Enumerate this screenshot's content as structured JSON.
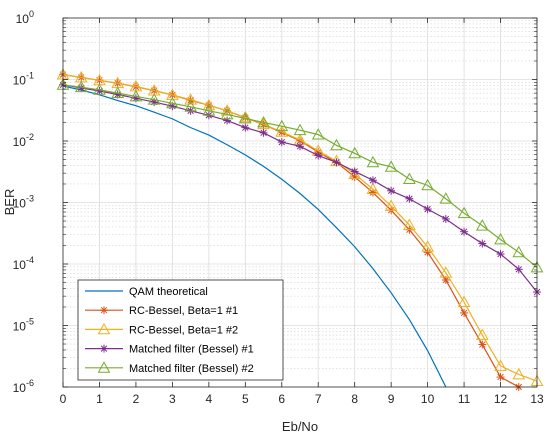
{
  "chart_data": {
    "type": "line",
    "title": "",
    "xlabel": "Eb/No",
    "ylabel": "BER",
    "xlim": [
      0,
      13
    ],
    "ylim": [
      1e-06,
      1
    ],
    "yscale": "log",
    "grid": true,
    "minor_grid": true,
    "legend_position": "bottom-left",
    "xticks": [
      "0",
      "1",
      "2",
      "3",
      "4",
      "5",
      "6",
      "7",
      "8",
      "9",
      "10",
      "11",
      "12",
      "13"
    ],
    "yticks": [
      {
        "base": "10",
        "exp": "0",
        "value": 1
      },
      {
        "base": "10",
        "exp": "-1",
        "value": 0.1
      },
      {
        "base": "10",
        "exp": "-2",
        "value": 0.01
      },
      {
        "base": "10",
        "exp": "-3",
        "value": 0.001
      },
      {
        "base": "10",
        "exp": "-4",
        "value": 0.0001
      },
      {
        "base": "10",
        "exp": "-5",
        "value": 1e-05
      },
      {
        "base": "10",
        "exp": "-6",
        "value": 1e-06
      }
    ],
    "series": [
      {
        "name": "QAM theoretical",
        "color": "#0072BD",
        "marker": "none",
        "x": [
          0,
          0.5,
          1,
          1.5,
          2,
          2.5,
          3,
          3.5,
          4,
          4.5,
          5,
          5.5,
          6,
          6.5,
          7,
          7.5,
          8,
          8.5,
          9,
          9.5,
          10,
          10.5
        ],
        "y": [
          0.0786,
          0.0675,
          0.0563,
          0.0454,
          0.0375,
          0.0294,
          0.0229,
          0.0165,
          0.0125,
          0.00868,
          0.00595,
          0.00386,
          0.00239,
          0.0014,
          0.00077,
          0.00039,
          0.000191,
          8.4e-05,
          3.4e-05,
          1.25e-05,
          3.9e-06,
          1e-06
        ]
      },
      {
        "name": "RC-Bessel, Beta=1 #1",
        "color": "#D95319",
        "marker": "star",
        "x": [
          0,
          0.5,
          1,
          1.5,
          2,
          2.5,
          3,
          3.5,
          4,
          4.5,
          5,
          5.5,
          6,
          6.5,
          7,
          7.5,
          8,
          8.5,
          9,
          9.5,
          10,
          10.5,
          11,
          11.5,
          12,
          12.5
        ],
        "y": [
          0.12,
          0.108,
          0.097,
          0.087,
          0.076,
          0.066,
          0.056,
          0.046,
          0.038,
          0.031,
          0.0239,
          0.0185,
          0.0138,
          0.0101,
          0.0066,
          0.0045,
          0.0026,
          0.00145,
          0.00075,
          0.00036,
          0.000155,
          5.5e-05,
          1.6e-05,
          4.9e-06,
          1.45e-06,
          1e-06
        ]
      },
      {
        "name": "RC-Bessel, Beta=1 #2",
        "color": "#EDB120",
        "marker": "triangle",
        "x": [
          0,
          0.5,
          1,
          1.5,
          2,
          2.5,
          3,
          3.5,
          4,
          4.5,
          5,
          5.5,
          6,
          6.5,
          7,
          7.5,
          8,
          8.5,
          9,
          9.5,
          10,
          10.5,
          11,
          11.5,
          12,
          12.5,
          13
        ],
        "y": [
          0.12,
          0.108,
          0.097,
          0.087,
          0.077,
          0.066,
          0.056,
          0.047,
          0.038,
          0.031,
          0.0242,
          0.0187,
          0.0141,
          0.0104,
          0.0069,
          0.0047,
          0.0029,
          0.00165,
          0.00088,
          0.00043,
          0.00019,
          7.2e-05,
          2.4e-05,
          7e-06,
          2.2e-06,
          1.6e-06,
          1.25e-06
        ]
      },
      {
        "name": "Matched filter (Bessel) #1",
        "color": "#7E2F8E",
        "marker": "star",
        "x": [
          0,
          0.5,
          1,
          1.5,
          2,
          2.5,
          3,
          3.5,
          4,
          4.5,
          5,
          5.5,
          6,
          6.5,
          7,
          7.5,
          8,
          8.5,
          9,
          9.5,
          10,
          10.5,
          11,
          11.5,
          12,
          12.5,
          13
        ],
        "y": [
          0.082,
          0.073,
          0.065,
          0.057,
          0.0495,
          0.043,
          0.0368,
          0.031,
          0.0262,
          0.0215,
          0.0165,
          0.0136,
          0.0096,
          0.0082,
          0.0058,
          0.0045,
          0.0032,
          0.0023,
          0.00155,
          0.00115,
          0.00078,
          0.00054,
          0.000335,
          0.000215,
          0.000145,
          8.2e-05,
          3.5e-05
        ]
      },
      {
        "name": "Matched filter (Bessel) #2",
        "color": "#77AC30",
        "marker": "triangle",
        "x": [
          0,
          0.5,
          1,
          1.5,
          2,
          2.5,
          3,
          3.5,
          4,
          4.5,
          5,
          5.5,
          6,
          6.5,
          7,
          7.5,
          8,
          8.5,
          9,
          9.5,
          10,
          10.5,
          11,
          11.5,
          12,
          12.5,
          13
        ],
        "y": [
          0.082,
          0.075,
          0.068,
          0.06,
          0.053,
          0.047,
          0.041,
          0.036,
          0.031,
          0.027,
          0.0232,
          0.02,
          0.0174,
          0.015,
          0.0127,
          0.0085,
          0.0063,
          0.0045,
          0.0038,
          0.0024,
          0.0019,
          0.00115,
          0.00067,
          0.00042,
          0.00025,
          0.000155,
          8.8e-05
        ]
      }
    ]
  }
}
